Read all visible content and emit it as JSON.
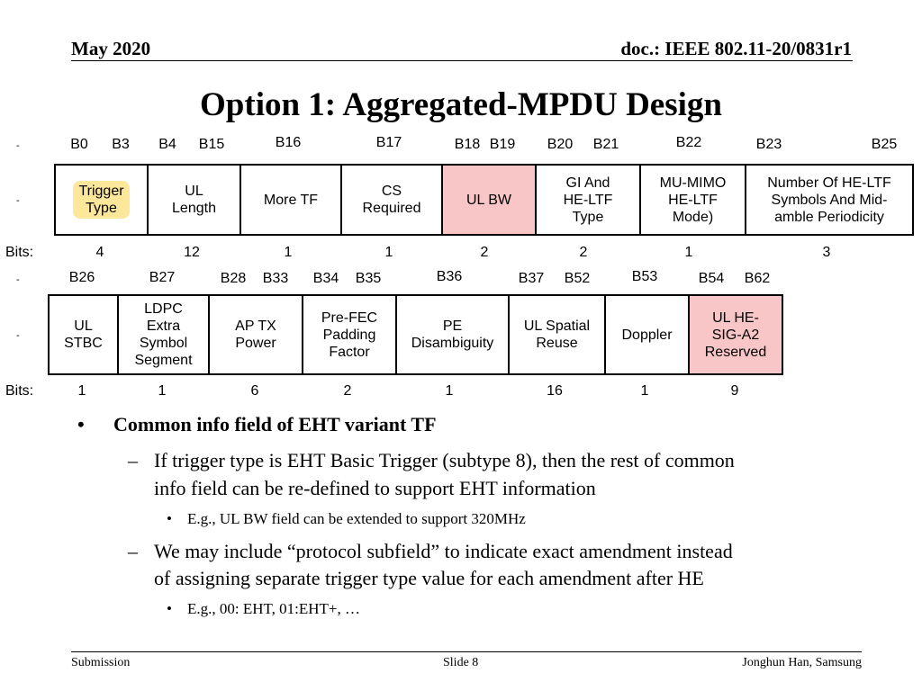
{
  "header": {
    "date": "May 2020",
    "doc": "doc.: IEEE 802.11-20/0831r1"
  },
  "title": "Option 1: Aggregated-MPDU Design",
  "row1": {
    "bit_labels": [
      "B0",
      "B3",
      "B4",
      "B15",
      "B16",
      "B17",
      "B18",
      "B19",
      "B20",
      "B21",
      "B22",
      "B23",
      "B25"
    ],
    "fields": [
      "Trigger\nType",
      "UL\nLength",
      "More TF",
      "CS\nRequired",
      "UL BW",
      "GI And\nHE-LTF\nType",
      "MU-MIMO\nHE-LTF\nMode)",
      "Number Of HE-LTF\nSymbols And Mid-\namble Periodicity"
    ],
    "bits": [
      "4",
      "12",
      "1",
      "1",
      "2",
      "2",
      "1",
      "3"
    ]
  },
  "row2": {
    "bit_labels": [
      "B26",
      "B27",
      "B28",
      "B33",
      "B34",
      "B35",
      "B36",
      "B37",
      "B52",
      "B53",
      "B54",
      "B62"
    ],
    "fields": [
      "UL\nSTBC",
      "LDPC\nExtra\nSymbol\nSegment",
      "AP TX\nPower",
      "Pre-FEC\nPadding\nFactor",
      "PE\nDisambiguity",
      "UL Spatial\nReuse",
      "Doppler",
      "UL HE-\nSIG-A2\nReserved"
    ],
    "bits": [
      "1",
      "1",
      "6",
      "2",
      "1",
      "16",
      "1",
      "9"
    ]
  },
  "labels": {
    "bits": "Bits:",
    "tick": "-"
  },
  "bullets": {
    "main": "Common info field of EHT variant TF",
    "sub1_line1": "If trigger type is EHT Basic Trigger (subtype 8), then the rest of common",
    "sub1_line2": "info field can be re-defined to support EHT information",
    "sub1_example": "E.g., UL BW field can be extended to support 320MHz",
    "sub2_line1": "We may include “protocol subfield” to indicate exact amendment instead",
    "sub2_line2": "of assigning separate trigger type value for each amendment after HE",
    "sub2_example": "E.g., 00: EHT, 01:EHT+, …"
  },
  "markers": {
    "bullet": "•",
    "dash": "–"
  },
  "footer": {
    "left": "Submission",
    "center": "Slide 8",
    "right": "Jonghun Han, Samsung"
  },
  "colors": {
    "highlight_yellow": "#fce79a",
    "highlight_pink": "#f8c6c6"
  }
}
